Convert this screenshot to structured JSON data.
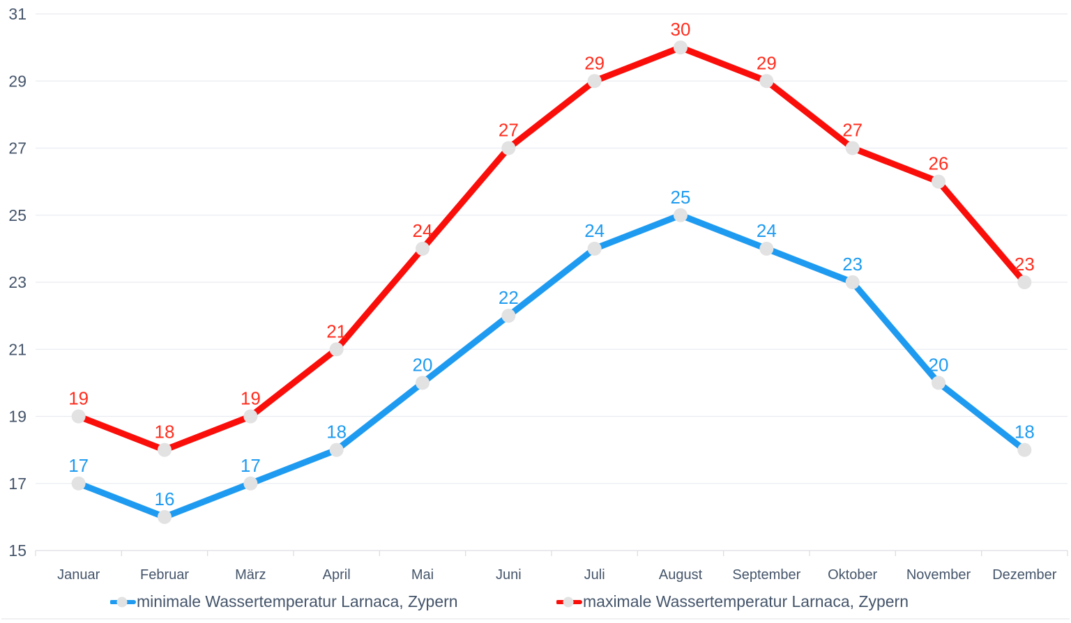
{
  "chart_data": {
    "type": "line",
    "title": "",
    "categories": [
      "Januar",
      "Februar",
      "März",
      "April",
      "Mai",
      "Juni",
      "Juli",
      "August",
      "September",
      "Oktober",
      "November",
      "Dezember"
    ],
    "series": [
      {
        "name": "minimale Wassertemperatur Larnaca, Zypern",
        "color": "#1E9BF0",
        "label_color": "#1E9BF0",
        "values": [
          17,
          16,
          17,
          18,
          20,
          22,
          24,
          25,
          24,
          23,
          20,
          18
        ]
      },
      {
        "name": "maximale Wassertemperatur Larnaca, Zypern",
        "color": "#FA0E0A",
        "label_color": "#FF2D1E",
        "values": [
          19,
          18,
          19,
          21,
          24,
          27,
          29,
          30,
          29,
          27,
          26,
          23
        ]
      }
    ],
    "xlabel": "",
    "ylabel": "",
    "y_axis": {
      "min": 15,
      "max": 31,
      "tick_step": 2,
      "ticks": [
        15,
        17,
        19,
        21,
        23,
        25,
        27,
        29,
        31
      ]
    },
    "grid": true,
    "legend_position": "bottom",
    "colors": {
      "marker_fill": "#E2E2E2",
      "axis_text": "#44546A",
      "gridline": "#EAEBF1",
      "baseline": "#DDDEE4",
      "tick_mark": "#DDDEE4",
      "bottom_divider": "#E7E7EC"
    }
  }
}
